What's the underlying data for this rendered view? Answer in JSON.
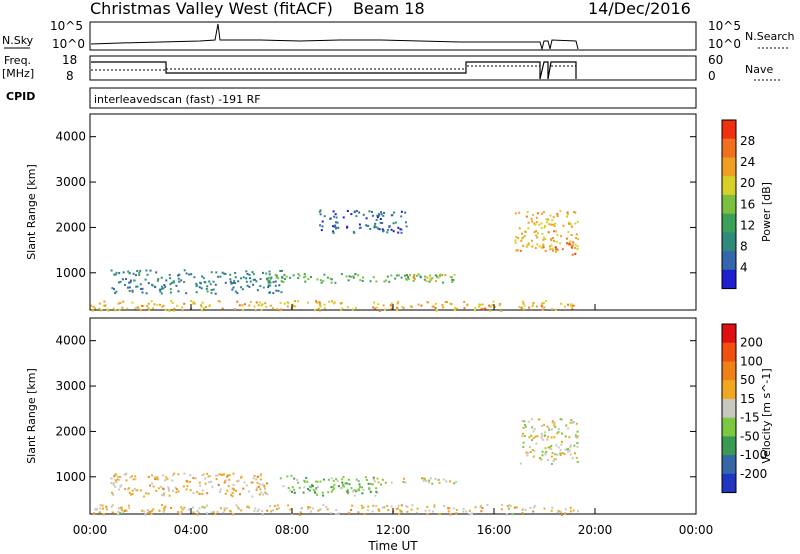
{
  "header": {
    "station": "Christmas Valley West (fitACF)",
    "beam": "Beam 18",
    "date": "14/Dec/2016"
  },
  "status_panels": {
    "nsky_label": "N.Sky",
    "nsky_ticks": [
      "10^5",
      "10^0"
    ],
    "nsearch_label": "N.Search",
    "nsearch_ticks": [
      "10^5",
      "10^0"
    ],
    "freq_label_1": "Freq.",
    "freq_label_2": "[MHz]",
    "freq_ticks": [
      "18",
      "8"
    ],
    "nave_label": "Nave",
    "nave_ticks": [
      "60",
      "0"
    ],
    "cpid_label": "CPID",
    "cpid_text": "interleavedscan (fast) -191 RF"
  },
  "colors": {
    "power_scale": [
      "#1f1fd0",
      "#3366aa",
      "#2e8a7a",
      "#3aa05a",
      "#7cc040",
      "#d8d028",
      "#f0a020",
      "#f07020",
      "#f03010"
    ],
    "velocity_scale": [
      "#e01010",
      "#f05010",
      "#f08018",
      "#f0a820",
      "#c8c8c0",
      "#7cc840",
      "#3a9a52",
      "#3468a8",
      "#2035c0"
    ]
  },
  "chart_data": [
    {
      "type": "heatmap",
      "title": "Power",
      "ylabel": "Slant Range [km]",
      "colorbar_label": "Power [dB]",
      "colorbar_ticks": [
        "28",
        "24",
        "20",
        "16",
        "12",
        "8",
        "4"
      ],
      "clim": [
        0,
        32
      ],
      "ylim": [
        180,
        4500
      ],
      "y_ticks": [
        "4000",
        "3000",
        "2000",
        "1000"
      ],
      "x_ticks": [
        "00:00",
        "04:00",
        "08:00",
        "12:00",
        "16:00",
        "20:00",
        "00:00"
      ],
      "regions": [
        {
          "t0": 0.0,
          "t1": 19.3,
          "r0": 180,
          "r1": 400,
          "value": 22
        },
        {
          "t0": 0.8,
          "t1": 7.6,
          "r0": 560,
          "r1": 1080,
          "value": 8
        },
        {
          "t0": 7.0,
          "t1": 14.5,
          "r0": 800,
          "r1": 1000,
          "value": 14
        },
        {
          "t0": 12.5,
          "t1": 14.5,
          "r0": 830,
          "r1": 980,
          "value": 20
        },
        {
          "t0": 9.0,
          "t1": 12.5,
          "r0": 1900,
          "r1": 2400,
          "value": 6
        },
        {
          "t0": 16.8,
          "t1": 19.3,
          "r0": 1500,
          "r1": 2400,
          "value": 22
        },
        {
          "t0": 18.4,
          "t1": 19.3,
          "r0": 1400,
          "r1": 1800,
          "value": 28
        }
      ]
    },
    {
      "type": "heatmap",
      "title": "Velocity",
      "ylabel": "Slant Range [km]",
      "xlabel": "Time UT",
      "colorbar_label": "Velocity [m s^-1]",
      "colorbar_ticks": [
        "200",
        "100",
        "50",
        "15",
        "-15",
        "-50",
        "-100",
        "-200"
      ],
      "clim": [
        -250,
        250
      ],
      "ylim": [
        180,
        4500
      ],
      "y_ticks": [
        "4000",
        "3000",
        "2000",
        "1000"
      ],
      "x_ticks": [
        "00:00",
        "04:00",
        "08:00",
        "12:00",
        "16:00",
        "20:00",
        "00:00"
      ],
      "regions": [
        {
          "t0": 0.0,
          "t1": 19.3,
          "r0": 180,
          "r1": 400,
          "value": 30
        },
        {
          "t0": 0.8,
          "t1": 7.0,
          "r0": 580,
          "r1": 1100,
          "value": 40
        },
        {
          "t0": 7.5,
          "t1": 11.5,
          "r0": 600,
          "r1": 1050,
          "value": -60
        },
        {
          "t0": 11.0,
          "t1": 14.5,
          "r0": 850,
          "r1": 1000,
          "value": 0
        },
        {
          "t0": 17.0,
          "t1": 19.3,
          "r0": 1300,
          "r1": 2300,
          "value": 0
        }
      ]
    }
  ],
  "x_axis_label": "Time UT"
}
